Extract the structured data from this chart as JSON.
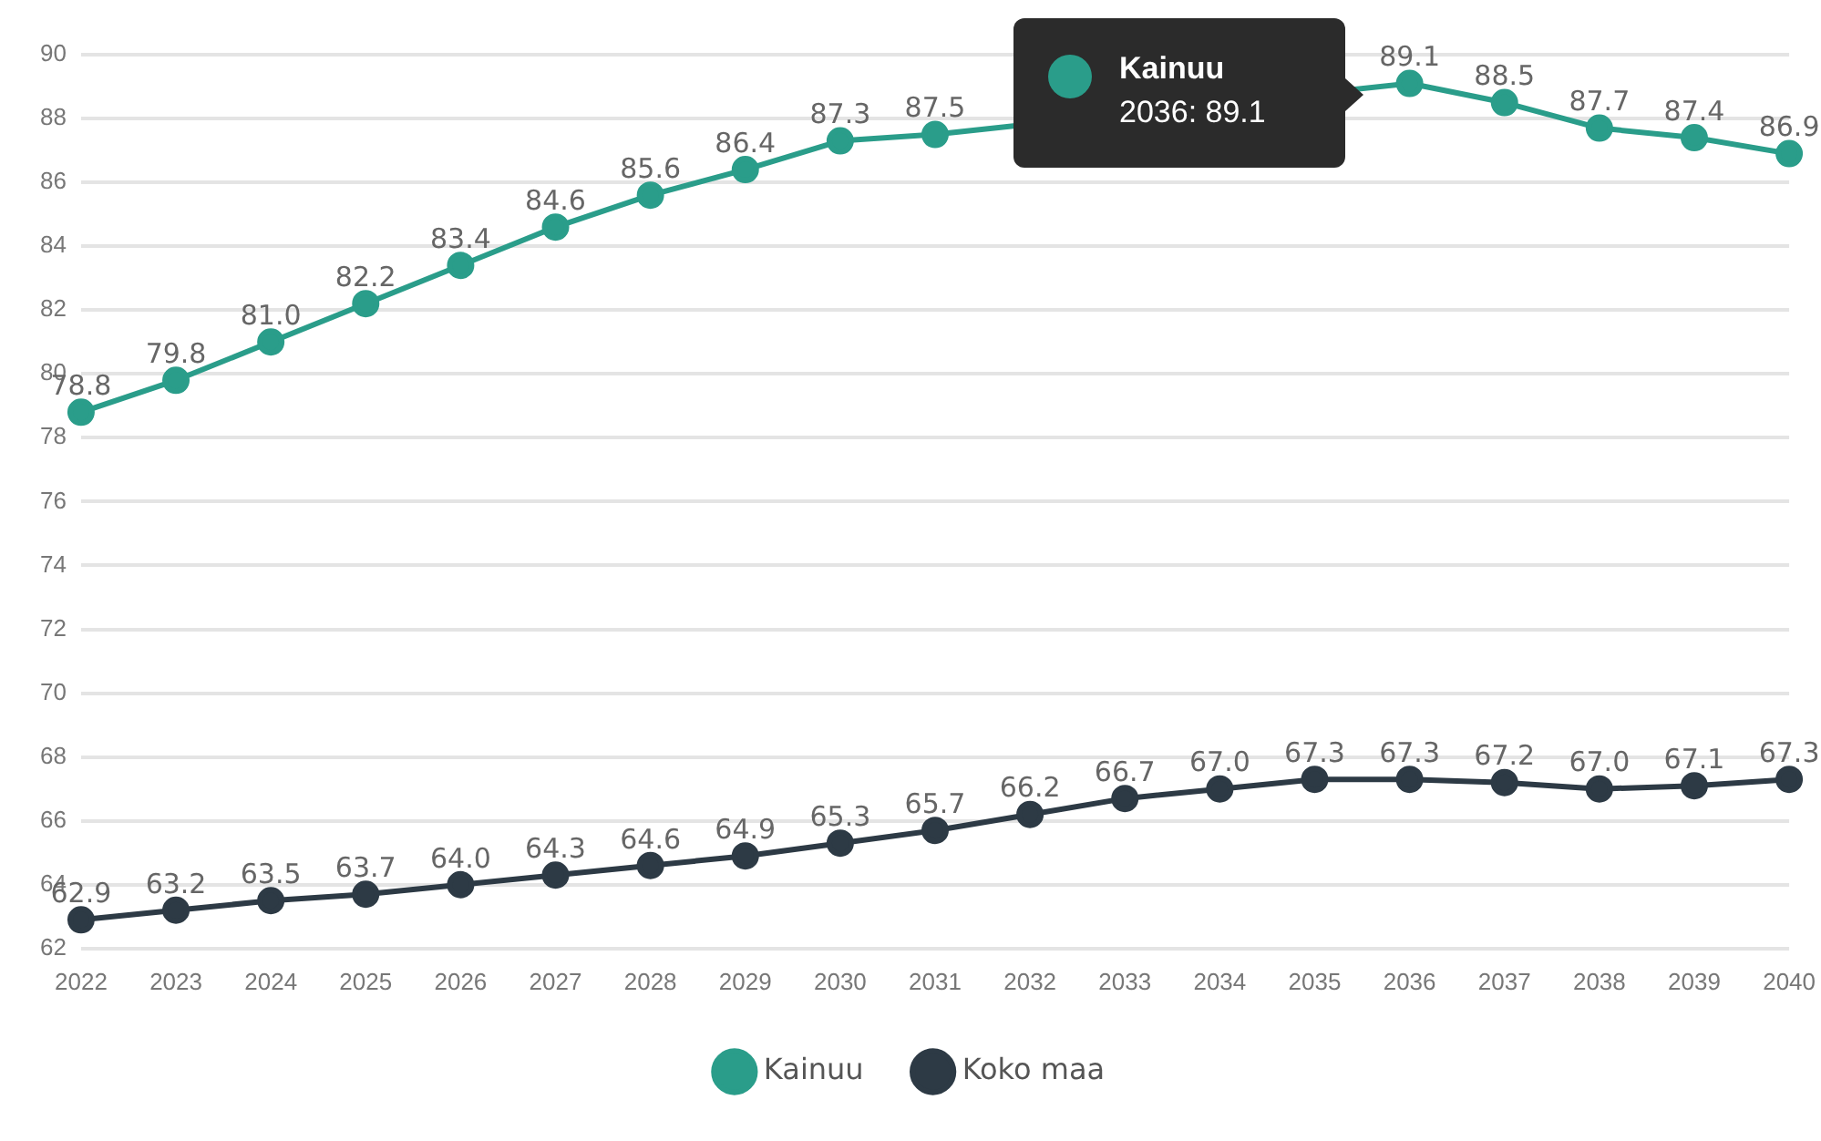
{
  "chart_data": {
    "type": "line",
    "categories": [
      "2022",
      "2023",
      "2024",
      "2025",
      "2026",
      "2027",
      "2028",
      "2029",
      "2030",
      "2031",
      "2032",
      "2033",
      "2034",
      "2035",
      "2036",
      "2037",
      "2038",
      "2039",
      "2040"
    ],
    "series": [
      {
        "name": "Kainuu",
        "color": "#2a9d8a",
        "values": [
          78.8,
          79.8,
          81.0,
          82.2,
          83.4,
          84.6,
          85.6,
          86.4,
          87.3,
          87.5,
          null,
          null,
          null,
          null,
          89.1,
          88.5,
          87.7,
          87.4,
          86.9
        ],
        "value_labels": [
          "78.8",
          "79.8",
          "81.0",
          "82.2",
          "83.4",
          "84.6",
          "85.6",
          "86.4",
          "87.3",
          "87.5",
          null,
          null,
          null,
          null,
          "89.1",
          "88.5",
          "87.7",
          "87.4",
          "86.9"
        ]
      },
      {
        "name": "Koko maa",
        "color": "#2d3a45",
        "values": [
          62.9,
          63.2,
          63.5,
          63.7,
          64.0,
          64.3,
          64.6,
          64.9,
          65.3,
          65.7,
          66.2,
          66.7,
          67.0,
          67.3,
          67.3,
          67.2,
          67.0,
          67.1,
          67.3
        ],
        "value_labels": [
          "62.9",
          "63.2",
          "63.5",
          "63.7",
          "64.0",
          "64.3",
          "64.6",
          "64.9",
          "65.3",
          "65.7",
          "66.2",
          "66.7",
          "67.0",
          "67.3",
          "67.3",
          "67.2",
          "67.0",
          "67.1",
          "67.3"
        ]
      }
    ],
    "ylim": [
      62,
      90
    ],
    "yticks": [
      62,
      64,
      66,
      68,
      70,
      72,
      74,
      76,
      78,
      80,
      82,
      84,
      86,
      88,
      90
    ],
    "grid": "y",
    "legend": "bottom",
    "marker": "circle",
    "line_style": "solid",
    "annotations": [
      "Kainuu",
      "2036: 89.1"
    ]
  }
}
